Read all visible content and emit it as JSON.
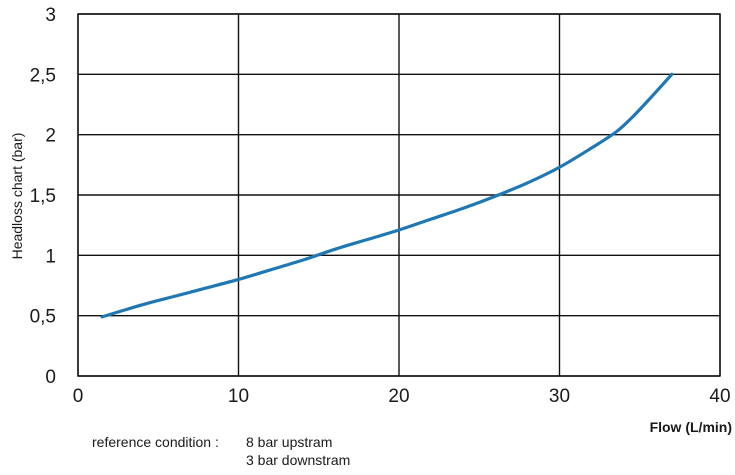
{
  "chart_data": {
    "type": "line",
    "xlabel": "Flow (L/min)",
    "ylabel": "Headloss chart (bar)",
    "xlim": [
      0,
      40
    ],
    "ylim": [
      0,
      3
    ],
    "x_ticks": [
      {
        "value": 0,
        "label": "0"
      },
      {
        "value": 10,
        "label": "10"
      },
      {
        "value": 20,
        "label": "20"
      },
      {
        "value": 30,
        "label": "30"
      },
      {
        "value": 40,
        "label": "40"
      }
    ],
    "y_ticks": [
      {
        "value": 0,
        "label": "0"
      },
      {
        "value": 0.5,
        "label": "0,5"
      },
      {
        "value": 1,
        "label": "1"
      },
      {
        "value": 1.5,
        "label": "1,5"
      },
      {
        "value": 2,
        "label": "2"
      },
      {
        "value": 2.5,
        "label": "2,5"
      },
      {
        "value": 3,
        "label": "3"
      }
    ],
    "grid": true,
    "series": [
      {
        "color": "#1f78b4",
        "x": [
          1.5,
          4,
          6,
          8,
          10,
          12,
          14,
          16,
          18,
          20,
          22,
          24,
          26,
          28,
          30,
          32,
          33.5,
          34.5,
          35.5,
          37
        ],
        "y": [
          0.49,
          0.59,
          0.66,
          0.73,
          0.8,
          0.88,
          0.96,
          1.05,
          1.13,
          1.21,
          1.3,
          1.39,
          1.49,
          1.6,
          1.73,
          1.89,
          2.02,
          2.14,
          2.28,
          2.5
        ]
      }
    ]
  },
  "notes": {
    "reference_label": "reference condition :",
    "upstream": "8 bar upstram",
    "downstream": "3 bar downstram"
  }
}
